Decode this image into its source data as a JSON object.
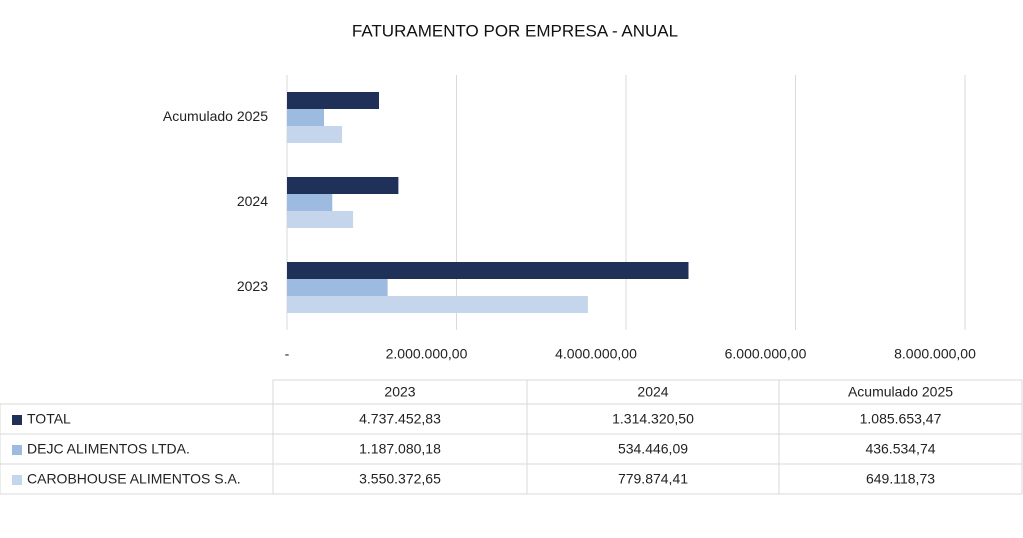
{
  "chart_data": {
    "type": "bar",
    "orientation": "horizontal",
    "title": "FATURAMENTO POR EMPRESA - ANUAL",
    "categories": [
      "2023",
      "2024",
      "Acumulado 2025"
    ],
    "series": [
      {
        "name": "TOTAL",
        "color": "#1f3158",
        "values": [
          4737452.83,
          1314320.5,
          1085653.47
        ],
        "value_labels": [
          "4.737.452,83",
          "1.314.320,50",
          "1.085.653,47"
        ]
      },
      {
        "name": "DEJC ALIMENTOS LTDA.",
        "color": "#9dbbe0",
        "values": [
          1187080.18,
          534446.09,
          436534.74
        ],
        "value_labels": [
          "1.187.080,18",
          "534.446,09",
          "436.534,74"
        ]
      },
      {
        "name": "CAROBHOUSE ALIMENTOS S.A.",
        "color": "#c5d5ec",
        "values": [
          3550372.65,
          779874.41,
          649118.73
        ],
        "value_labels": [
          "3.550.372,65",
          "779.874,41",
          "649.118,73"
        ]
      }
    ],
    "xlim": [
      0,
      8000000
    ],
    "xticks": [
      {
        "value": 0,
        "label": "-"
      },
      {
        "value": 2000000,
        "label": "2.000.000,00"
      },
      {
        "value": 4000000,
        "label": "4.000.000,00"
      },
      {
        "value": 6000000,
        "label": "6.000.000,00"
      },
      {
        "value": 8000000,
        "label": "8.000.000,00"
      }
    ],
    "grid": true
  }
}
